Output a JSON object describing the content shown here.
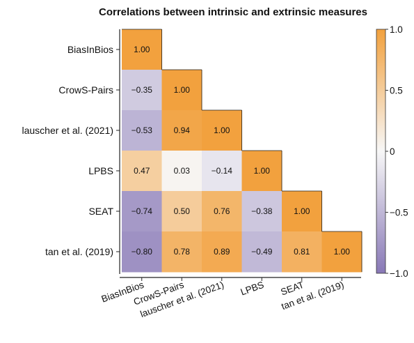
{
  "chart_data": {
    "type": "heatmap",
    "title": "Correlations between intrinsic and extrinsic measures",
    "labels": [
      "BiasInBios",
      "CrowS-Pairs",
      "lauscher et al. (2021)",
      "LPBS",
      "SEAT",
      "tan et al. (2019)"
    ],
    "matrix": [
      [
        1.0
      ],
      [
        -0.35,
        1.0
      ],
      [
        -0.53,
        0.94,
        1.0
      ],
      [
        0.47,
        0.03,
        -0.14,
        1.0
      ],
      [
        -0.74,
        0.5,
        0.76,
        -0.38,
        1.0
      ],
      [
        -0.8,
        0.78,
        0.89,
        -0.49,
        0.81,
        1.0
      ]
    ],
    "value_labels": [
      [
        "1.00"
      ],
      [
        "−0.35",
        "1.00"
      ],
      [
        "−0.53",
        "0.94",
        "1.00"
      ],
      [
        "0.47",
        "0.03",
        "−0.14",
        "1.00"
      ],
      [
        "−0.74",
        "0.50",
        "0.76",
        "−0.38",
        "1.00"
      ],
      [
        "−0.80",
        "0.78",
        "0.89",
        "−0.49",
        "0.81",
        "1.00"
      ]
    ],
    "colorbar": {
      "range": [
        -1.0,
        1.0
      ],
      "ticks": [
        1.0,
        0.5,
        0,
        -0.5,
        -1.0
      ],
      "tick_labels": [
        "1.0",
        "0.5",
        "0",
        "−0.5",
        "−1.0"
      ],
      "low_color": "#8878b6",
      "mid_color": "#f7f7f7",
      "high_color": "#f2a13e"
    },
    "grid": false,
    "layout": "lower-triangle"
  }
}
